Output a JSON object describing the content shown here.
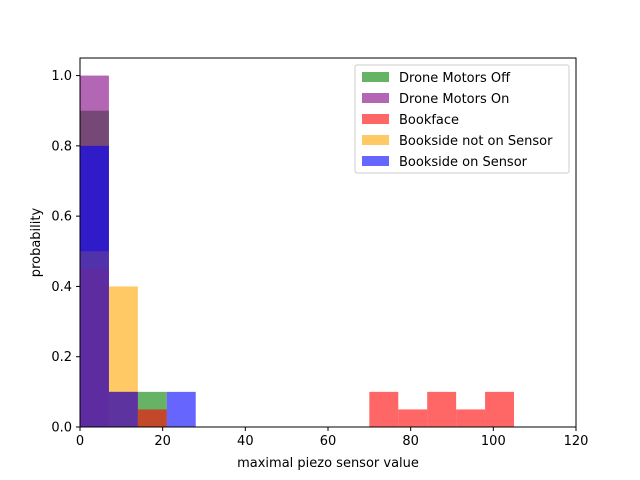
{
  "chart_data": {
    "type": "bar",
    "subtype": "overlaid-histogram",
    "title": "",
    "xlabel": "maximal piezo sensor value",
    "ylabel": "probability",
    "xlim": [
      0,
      120
    ],
    "ylim": [
      0,
      1.05
    ],
    "xticks": [
      0,
      20,
      40,
      60,
      80,
      100,
      120
    ],
    "yticks": [
      0.0,
      0.2,
      0.4,
      0.6,
      0.8,
      1.0
    ],
    "xtick_labels": [
      "0",
      "20",
      "40",
      "60",
      "80",
      "100",
      "120"
    ],
    "ytick_labels": [
      "0.0",
      "0.2",
      "0.4",
      "0.6",
      "0.8",
      "1.0"
    ],
    "bin_width": 7,
    "grid": false,
    "legend_position": "top-right",
    "series": [
      {
        "name": "Drone Motors Off",
        "color": "#008000",
        "alpha": 0.6,
        "bins": [
          {
            "x0": 0,
            "x1": 7,
            "y": 0.9
          },
          {
            "x0": 7,
            "x1": 14,
            "y": 0.1
          },
          {
            "x0": 14,
            "x1": 21,
            "y": 0.1
          }
        ]
      },
      {
        "name": "Drone Motors On",
        "color": "#800080",
        "alpha": 0.6,
        "bins": [
          {
            "x0": 0,
            "x1": 7,
            "y": 1.0
          }
        ]
      },
      {
        "name": "Bookface",
        "color": "#ff0000",
        "alpha": 0.6,
        "bins": [
          {
            "x0": 0,
            "x1": 7,
            "y": 0.45
          },
          {
            "x0": 7,
            "x1": 14,
            "y": 0.1
          },
          {
            "x0": 14,
            "x1": 21,
            "y": 0.05
          },
          {
            "x0": 70,
            "x1": 77,
            "y": 0.1
          },
          {
            "x0": 77,
            "x1": 84,
            "y": 0.05
          },
          {
            "x0": 84,
            "x1": 91,
            "y": 0.1
          },
          {
            "x0": 91,
            "x1": 98,
            "y": 0.05
          },
          {
            "x0": 98,
            "x1": 105,
            "y": 0.1
          }
        ]
      },
      {
        "name": "Bookside not on Sensor",
        "color": "#ffa500",
        "alpha": 0.6,
        "bins": [
          {
            "x0": 0,
            "x1": 7,
            "y": 0.5
          },
          {
            "x0": 7,
            "x1": 14,
            "y": 0.4
          }
        ]
      },
      {
        "name": "Bookside on Sensor",
        "color": "#0000ff",
        "alpha": 0.6,
        "bins": [
          {
            "x0": 0,
            "x1": 7,
            "y": 0.8
          },
          {
            "x0": 7,
            "x1": 14,
            "y": 0.1
          },
          {
            "x0": 21,
            "x1": 28,
            "y": 0.1
          }
        ]
      }
    ]
  }
}
